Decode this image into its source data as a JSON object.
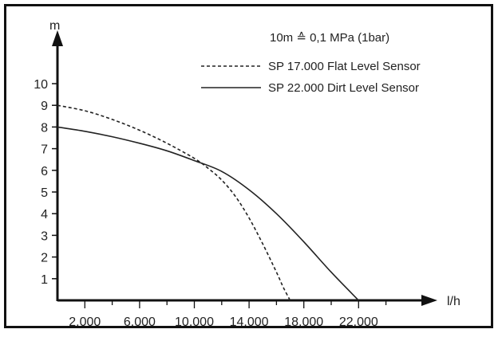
{
  "chart_data": {
    "type": "line",
    "note": "10m ≙ 0,1 MPa (1bar)",
    "xlabel": "l/h",
    "ylabel": "m",
    "x_tick_labels": [
      "2.000",
      "6.000",
      "10.000",
      "14.000",
      "18.000",
      "22.000"
    ],
    "x_ticks": [
      2000,
      6000,
      10000,
      14000,
      18000,
      22000
    ],
    "y_ticks": [
      1,
      2,
      3,
      4,
      5,
      6,
      7,
      8,
      9,
      10
    ],
    "xlim": [
      0,
      25000
    ],
    "ylim": [
      0,
      12
    ],
    "grid": false,
    "legend_position": "top-right",
    "series": [
      {
        "name": "SP 17.000 Flat Level Sensor",
        "style": "dashed",
        "color": "#222222",
        "x": [
          0,
          2000,
          4000,
          6000,
          8000,
          10000,
          11000,
          12000,
          13000,
          14000,
          15000,
          16000,
          16500,
          17000
        ],
        "y": [
          9.0,
          8.75,
          8.35,
          7.85,
          7.25,
          6.55,
          6.1,
          5.55,
          4.8,
          3.8,
          2.6,
          1.3,
          0.6,
          0.0
        ]
      },
      {
        "name": "SP 22.000 Dirt Level Sensor",
        "style": "solid",
        "color": "#222222",
        "x": [
          0,
          2000,
          4000,
          6000,
          8000,
          10000,
          12000,
          14000,
          16000,
          18000,
          20000,
          22000
        ],
        "y": [
          8.0,
          7.8,
          7.55,
          7.25,
          6.9,
          6.45,
          5.95,
          5.1,
          4.0,
          2.7,
          1.3,
          0.0
        ]
      }
    ]
  }
}
